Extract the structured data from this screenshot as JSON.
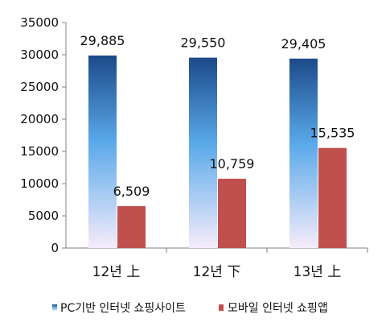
{
  "chart_data": {
    "type": "bar",
    "categories": [
      "12년 上",
      "12년 下",
      "13년 上"
    ],
    "series": [
      {
        "name": "PC기반 인터넷 쇼핑사이트",
        "values": [
          29885,
          29550,
          29405
        ],
        "labels": [
          "29,885",
          "29,550",
          "29,405"
        ],
        "color": "#1f4e8c"
      },
      {
        "name": "모바일 인터넷 쇼핑앱",
        "values": [
          6509,
          10759,
          15535
        ],
        "labels": [
          "6,509",
          "10,759",
          "15,535"
        ],
        "color": "#c0504d"
      }
    ],
    "ylim": [
      0,
      35000
    ],
    "yticks": [
      0,
      5000,
      10000,
      15000,
      20000,
      25000,
      30000,
      35000
    ],
    "ytick_labels": [
      "0",
      "5000",
      "10000",
      "15000",
      "20000",
      "25000",
      "30000",
      "35000"
    ],
    "grid": false,
    "legend_position": "bottom",
    "title": "",
    "xlabel": "",
    "ylabel": ""
  }
}
